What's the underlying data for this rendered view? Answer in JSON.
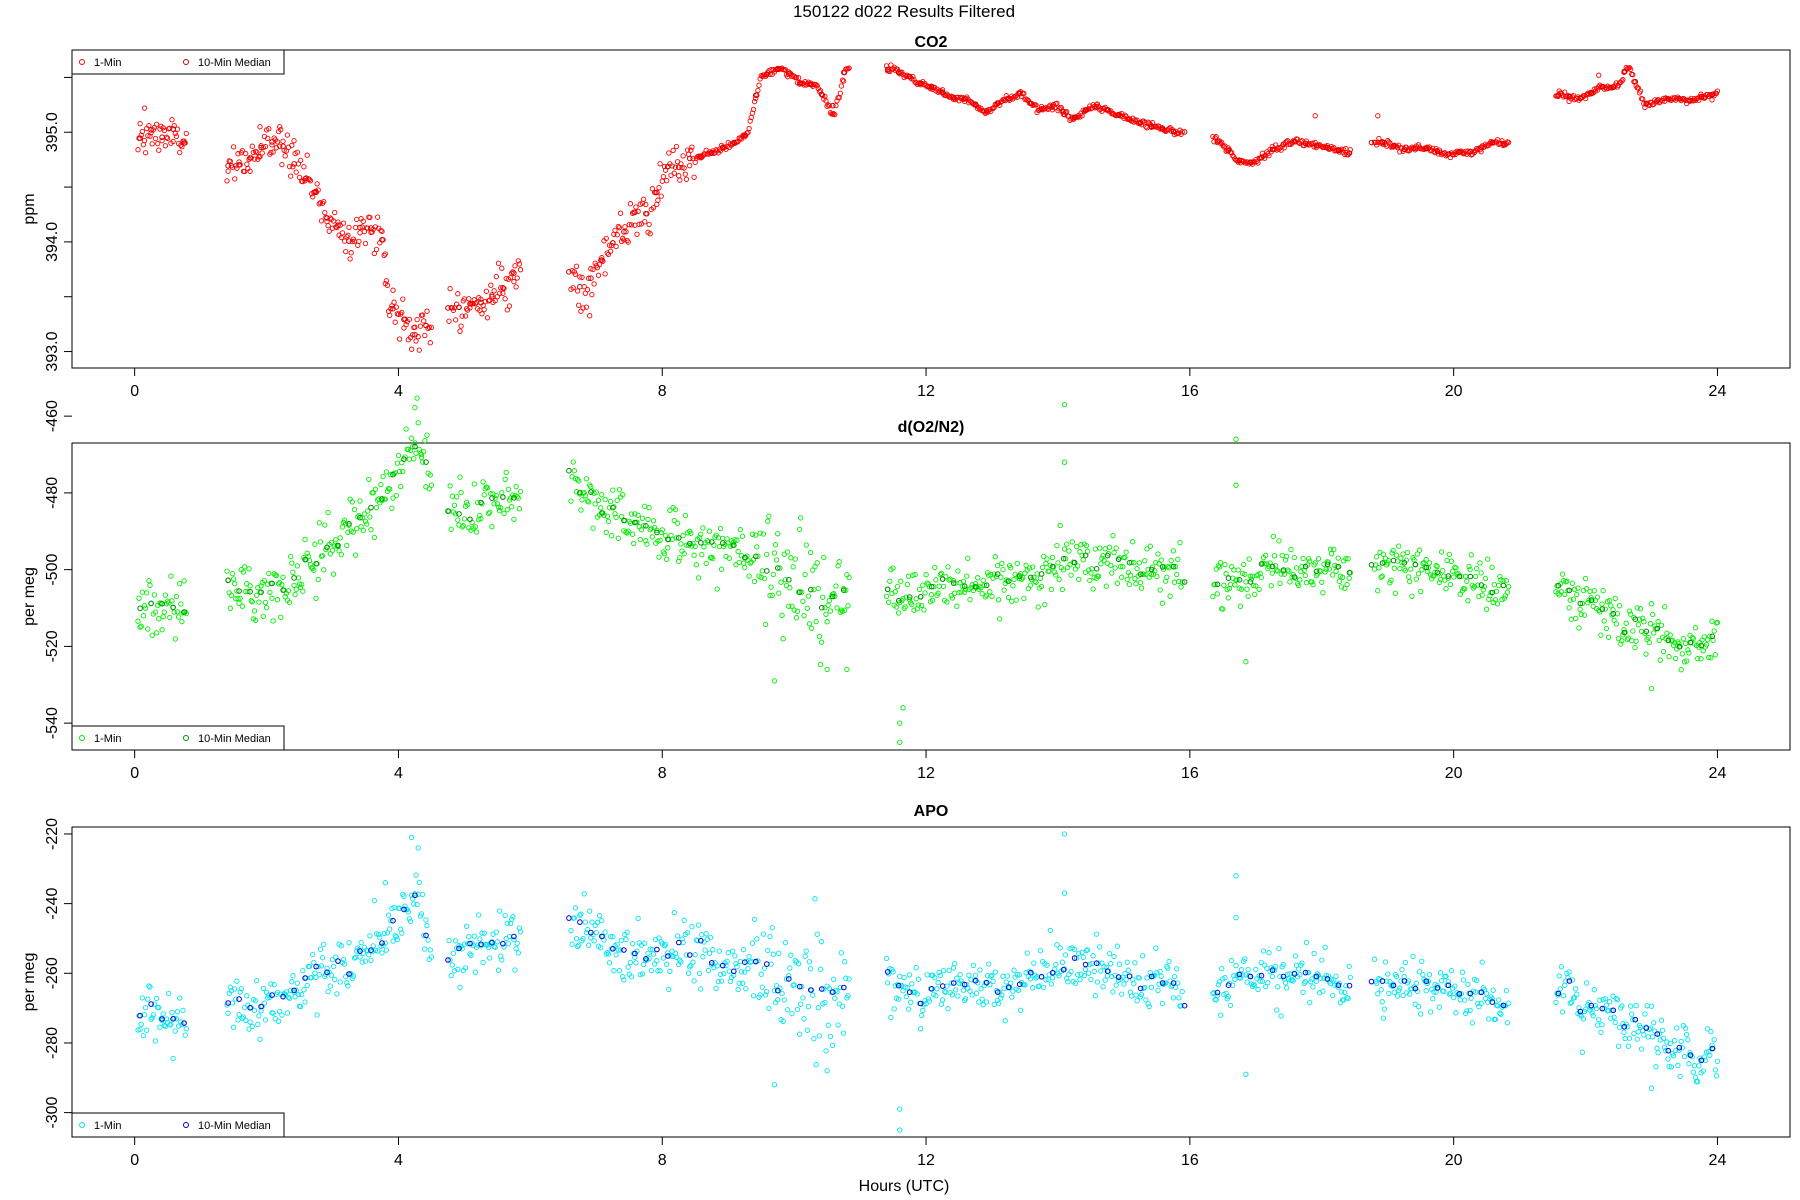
{
  "figure": {
    "suptitle": "150122   d022   Results Filtered",
    "xlabel": "Hours (UTC)"
  },
  "chart_data": [
    {
      "type": "scatter",
      "title": "CO2",
      "xlabel": "",
      "ylabel": "ppm",
      "xlim": [
        -0.95,
        25.1
      ],
      "ylim": [
        392.85,
        395.75
      ],
      "xticks": [
        0,
        4,
        8,
        12,
        16,
        20,
        24
      ],
      "yticks": [
        393.0,
        393.5,
        394.0,
        394.5,
        395.0,
        395.5
      ],
      "ytick_labels": [
        "393.0",
        "",
        "394.0",
        "",
        "395.0",
        ""
      ],
      "legend": {
        "position": "top-left",
        "entries": [
          "1-Min",
          "10-Min Median"
        ]
      },
      "series": [
        {
          "name": "1-Min",
          "color": "#ff0000",
          "marker": "open-circle",
          "trend": [
            [
              0.05,
              394.9
            ],
            [
              0.35,
              395.0
            ],
            [
              0.75,
              394.92
            ],
            [
              1.45,
              394.62
            ],
            [
              1.9,
              394.85
            ],
            [
              2.3,
              394.92
            ],
            [
              2.6,
              394.6
            ],
            [
              2.9,
              394.25
            ],
            [
              3.2,
              394.08
            ],
            [
              3.5,
              394.1
            ],
            [
              3.75,
              394.12
            ],
            [
              3.85,
              393.45
            ],
            [
              4.2,
              393.2
            ],
            [
              4.5,
              393.18
            ],
            [
              4.8,
              393.45
            ],
            [
              5.1,
              393.38
            ],
            [
              5.4,
              393.5
            ],
            [
              5.8,
              393.7
            ],
            [
              6.65,
              393.7
            ],
            [
              6.85,
              393.55
            ],
            [
              7.1,
              393.85
            ],
            [
              7.5,
              394.15
            ],
            [
              7.8,
              394.25
            ],
            [
              8.05,
              394.6
            ],
            [
              8.4,
              394.75
            ],
            [
              8.8,
              394.82
            ],
            [
              9.1,
              394.9
            ],
            [
              9.3,
              395.0
            ],
            [
              9.5,
              395.52
            ],
            [
              9.8,
              395.58
            ],
            [
              10.1,
              395.45
            ],
            [
              10.35,
              395.42
            ],
            [
              10.6,
              395.15
            ],
            [
              10.8,
              395.6
            ],
            [
              11.5,
              395.58
            ],
            [
              11.8,
              395.48
            ],
            [
              12.1,
              395.4
            ],
            [
              12.4,
              395.32
            ],
            [
              12.65,
              395.3
            ],
            [
              12.9,
              395.18
            ],
            [
              13.2,
              395.3
            ],
            [
              13.45,
              395.35
            ],
            [
              13.7,
              395.2
            ],
            [
              13.95,
              395.25
            ],
            [
              14.2,
              395.12
            ],
            [
              14.6,
              395.25
            ],
            [
              14.9,
              395.15
            ],
            [
              15.2,
              395.1
            ],
            [
              15.5,
              395.05
            ],
            [
              15.85,
              395.0
            ],
            [
              16.4,
              394.95
            ],
            [
              16.7,
              394.75
            ],
            [
              16.95,
              394.72
            ],
            [
              17.3,
              394.85
            ],
            [
              17.6,
              394.92
            ],
            [
              17.9,
              394.88
            ],
            [
              18.4,
              394.82
            ],
            [
              18.85,
              394.92
            ],
            [
              19.2,
              394.85
            ],
            [
              19.6,
              394.85
            ],
            [
              19.9,
              394.8
            ],
            [
              20.3,
              394.82
            ],
            [
              20.6,
              394.92
            ],
            [
              20.8,
              394.88
            ],
            [
              21.6,
              395.35
            ],
            [
              21.9,
              395.3
            ],
            [
              22.2,
              395.4
            ],
            [
              22.5,
              395.42
            ],
            [
              22.65,
              395.6
            ],
            [
              22.9,
              395.25
            ],
            [
              23.2,
              395.3
            ],
            [
              23.6,
              395.3
            ],
            [
              24.0,
              395.35
            ]
          ],
          "gaps": [
            [
              0.8,
              1.4
            ],
            [
              4.5,
              4.75
            ],
            [
              5.85,
              6.6
            ],
            [
              10.85,
              11.4
            ],
            [
              15.9,
              16.35
            ],
            [
              18.45,
              18.8
            ],
            [
              20.85,
              21.55
            ]
          ],
          "noise": [
            [
              0.0,
              8.5,
              0.09
            ],
            [
              8.5,
              24.0,
              0.015
            ]
          ],
          "outliers": [
            [
              0.15,
              395.22
            ],
            [
              3.8,
              393.62
            ],
            [
              17.9,
              395.15
            ],
            [
              18.85,
              395.15
            ],
            [
              22.2,
              395.52
            ],
            [
              2.2,
              395.05
            ],
            [
              1.9,
              395.05
            ]
          ]
        },
        {
          "name": "10-Min Median",
          "color": "#cc0000",
          "marker": "open-circle",
          "step_hours": 0.1667
        }
      ]
    },
    {
      "type": "scatter",
      "title": "d(O2/N2)",
      "xlabel": "",
      "ylabel": "per meg",
      "xlim": [
        -0.95,
        25.1
      ],
      "ylim": [
        -547.0,
        -467.0
      ],
      "xticks": [
        0,
        4,
        8,
        12,
        16,
        20,
        24
      ],
      "yticks": [
        -540,
        -520,
        -500,
        -480,
        -460
      ],
      "ytick_labels": [
        "-540",
        "-520",
        "-500",
        "-480",
        "-460"
      ],
      "legend": {
        "position": "bottom-left",
        "entries": [
          "1-Min",
          "10-Min Median"
        ]
      },
      "series": [
        {
          "name": "1-Min",
          "color": "#00ee00",
          "marker": "open-circle",
          "trend": [
            [
              0.05,
              -510
            ],
            [
              0.7,
              -510
            ],
            [
              1.45,
              -504
            ],
            [
              1.9,
              -507
            ],
            [
              2.3,
              -503
            ],
            [
              2.6,
              -500
            ],
            [
              3.0,
              -492
            ],
            [
              3.5,
              -486
            ],
            [
              3.9,
              -478
            ],
            [
              4.3,
              -463
            ],
            [
              4.45,
              -478
            ],
            [
              4.8,
              -485
            ],
            [
              5.3,
              -484
            ],
            [
              5.8,
              -480
            ],
            [
              6.65,
              -478
            ],
            [
              7.2,
              -485
            ],
            [
              7.7,
              -489
            ],
            [
              8.3,
              -492
            ],
            [
              8.8,
              -494
            ],
            [
              9.3,
              -496
            ],
            [
              9.8,
              -503
            ],
            [
              10.3,
              -506
            ],
            [
              10.8,
              -508
            ],
            [
              11.5,
              -506
            ],
            [
              11.8,
              -506
            ],
            [
              12.5,
              -504
            ],
            [
              13.1,
              -504
            ],
            [
              13.6,
              -502
            ],
            [
              14.1,
              -498
            ],
            [
              14.6,
              -497
            ],
            [
              15.2,
              -500
            ],
            [
              15.8,
              -501
            ],
            [
              16.4,
              -504
            ],
            [
              16.8,
              -502
            ],
            [
              17.3,
              -499
            ],
            [
              17.9,
              -500
            ],
            [
              18.4,
              -500
            ],
            [
              18.85,
              -499
            ],
            [
              19.4,
              -499
            ],
            [
              19.9,
              -501
            ],
            [
              20.4,
              -503
            ],
            [
              20.8,
              -506
            ],
            [
              21.6,
              -504
            ],
            [
              21.9,
              -508
            ],
            [
              22.4,
              -512
            ],
            [
              22.8,
              -516
            ],
            [
              23.3,
              -519
            ],
            [
              23.7,
              -521
            ],
            [
              24.0,
              -519
            ]
          ],
          "gaps": [
            [
              0.8,
              1.4
            ],
            [
              4.5,
              4.75
            ],
            [
              5.85,
              6.6
            ],
            [
              10.85,
              11.4
            ],
            [
              15.9,
              16.35
            ],
            [
              18.45,
              18.8
            ],
            [
              20.85,
              21.55
            ]
          ],
          "noise": [
            [
              0.0,
              9.4,
              3.6
            ],
            [
              9.4,
              11.0,
              7.5
            ],
            [
              11.0,
              24.0,
              3.2
            ]
          ],
          "outliers": [
            [
              4.25,
              -467
            ],
            [
              4.35,
              -470
            ],
            [
              14.1,
              -457
            ],
            [
              14.1,
              -472
            ],
            [
              16.7,
              -466
            ],
            [
              16.7,
              -478
            ],
            [
              16.85,
              -524
            ],
            [
              11.6,
              -545
            ],
            [
              11.6,
              -540
            ],
            [
              11.65,
              -536
            ],
            [
              9.7,
              -529
            ],
            [
              10.5,
              -526
            ],
            [
              10.8,
              -526
            ],
            [
              23.0,
              -531
            ]
          ]
        },
        {
          "name": "10-Min Median",
          "color": "#008800",
          "marker": "open-circle",
          "step_hours": 0.1667
        }
      ]
    },
    {
      "type": "scatter",
      "title": "APO",
      "xlabel": "Hours (UTC)",
      "ylabel": "per meg",
      "xlim": [
        -0.95,
        25.1
      ],
      "ylim": [
        -307.0,
        -218.0
      ],
      "xticks": [
        0,
        4,
        8,
        12,
        16,
        20,
        24
      ],
      "yticks": [
        -300,
        -280,
        -260,
        -240,
        -220
      ],
      "ytick_labels": [
        "-300",
        "-280",
        "-260",
        "-240",
        "-220"
      ],
      "legend": {
        "position": "bottom-left",
        "entries": [
          "1-Min",
          "10-Min Median"
        ]
      },
      "series": [
        {
          "name": "1-Min",
          "color": "#00e5ee",
          "marker": "open-circle",
          "trend": [
            [
              0.05,
              -274
            ],
            [
              0.7,
              -273
            ],
            [
              1.45,
              -266
            ],
            [
              1.9,
              -271
            ],
            [
              2.3,
              -266
            ],
            [
              2.6,
              -263
            ],
            [
              3.0,
              -258
            ],
            [
              3.5,
              -254
            ],
            [
              3.9,
              -247
            ],
            [
              4.3,
              -237
            ],
            [
              4.45,
              -252
            ],
            [
              4.8,
              -256
            ],
            [
              5.3,
              -252
            ],
            [
              5.8,
              -250
            ],
            [
              6.65,
              -245
            ],
            [
              7.2,
              -252
            ],
            [
              7.7,
              -256
            ],
            [
              8.3,
              -254
            ],
            [
              8.8,
              -256
            ],
            [
              9.3,
              -258
            ],
            [
              9.8,
              -263
            ],
            [
              10.3,
              -266
            ],
            [
              10.8,
              -266
            ],
            [
              11.5,
              -262
            ],
            [
              11.8,
              -265
            ],
            [
              12.5,
              -264
            ],
            [
              13.1,
              -264
            ],
            [
              13.6,
              -262
            ],
            [
              14.1,
              -258
            ],
            [
              14.6,
              -259
            ],
            [
              15.2,
              -262
            ],
            [
              15.8,
              -264
            ],
            [
              16.4,
              -266
            ],
            [
              16.8,
              -262
            ],
            [
              17.3,
              -261
            ],
            [
              17.9,
              -262
            ],
            [
              18.4,
              -264
            ],
            [
              18.85,
              -262
            ],
            [
              19.4,
              -263
            ],
            [
              19.9,
              -264
            ],
            [
              20.4,
              -266
            ],
            [
              20.8,
              -270
            ],
            [
              21.6,
              -263
            ],
            [
              21.9,
              -270
            ],
            [
              22.4,
              -272
            ],
            [
              22.8,
              -277
            ],
            [
              23.3,
              -281
            ],
            [
              23.7,
              -284
            ],
            [
              24.0,
              -282
            ]
          ],
          "gaps": [
            [
              0.8,
              1.4
            ],
            [
              4.5,
              4.75
            ],
            [
              5.85,
              6.6
            ],
            [
              10.85,
              11.4
            ],
            [
              15.9,
              16.35
            ],
            [
              18.45,
              18.8
            ],
            [
              20.85,
              21.55
            ]
          ],
          "noise": [
            [
              0.0,
              9.4,
              4.2
            ],
            [
              9.4,
              11.0,
              8.5
            ],
            [
              11.0,
              24.0,
              3.8
            ]
          ],
          "outliers": [
            [
              4.2,
              -221
            ],
            [
              4.3,
              -224
            ],
            [
              14.1,
              -220
            ],
            [
              14.1,
              -237
            ],
            [
              16.7,
              -232
            ],
            [
              16.7,
              -244
            ],
            [
              16.85,
              -289
            ],
            [
              11.6,
              -305
            ],
            [
              11.6,
              -299
            ],
            [
              9.7,
              -292
            ],
            [
              10.5,
              -288
            ],
            [
              23.0,
              -293
            ],
            [
              3.8,
              -234
            ]
          ]
        },
        {
          "name": "10-Min Median",
          "color": "#0000cc",
          "marker": "open-circle",
          "step_hours": 0.1667
        }
      ]
    }
  ]
}
